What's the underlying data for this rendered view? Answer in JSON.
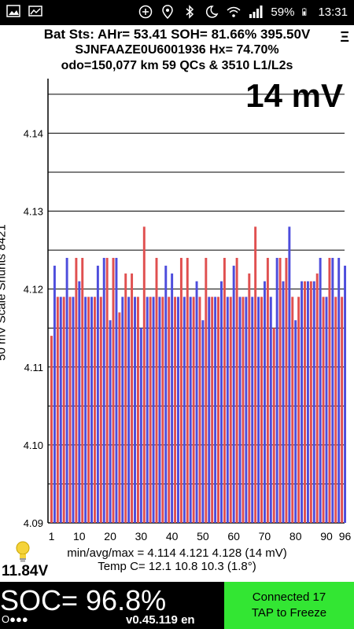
{
  "status_bar": {
    "battery": "59%",
    "time": "13:31",
    "left_icons": [
      "photo-icon",
      "image-icon"
    ],
    "right_icons": [
      "plus-circle-icon",
      "location-icon",
      "bluetooth-icon",
      "moon-alarm-icon",
      "wifi-icon",
      "signal-icon",
      "battery-icon"
    ]
  },
  "header": {
    "line1": "Bat Sts: AHr= 53.41 SOH= 81.66% 395.50V",
    "line2": "SJNFAAZE0U6001936   Hx= 74.70%",
    "line3": "odo=150,077 km 59 QCs & 3510 L1/L2s",
    "menu_icon": "more-menu-icon"
  },
  "scale_label": "14 mV",
  "y_axis_label": "50 mV Scale   Shunts 8421",
  "stats": {
    "minavgmax": "min/avg/max = 4.114 4.121 4.128  (14 mV)",
    "temp": "Temp C= 12.1  10.8  10.3  (1.8°)"
  },
  "voltage_12v": "11.84V",
  "soc": "SOC= 96.8%",
  "indicator": "O●●●",
  "version": "v0.45.119 en",
  "connection": {
    "line1": "Connected 17",
    "line2": "TAP to Freeze"
  },
  "colors": {
    "odd_cell": "#4d4ddc",
    "even_cell": "#e05050",
    "connect_bg": "#33e633"
  },
  "chart_data": {
    "type": "bar",
    "ylim": [
      4.09,
      4.147
    ],
    "yticks": [
      "4.09",
      "4.10",
      "4.11",
      "4.12",
      "4.13",
      "4.14"
    ],
    "xticks": [
      "1",
      "10",
      "20",
      "30",
      "40",
      "50",
      "60",
      "70",
      "80",
      "90",
      "96"
    ],
    "grid": true,
    "values": [
      4.114,
      4.123,
      4.119,
      4.119,
      4.119,
      4.124,
      4.119,
      4.119,
      4.124,
      4.121,
      4.124,
      4.119,
      4.119,
      4.119,
      4.119,
      4.123,
      4.119,
      4.124,
      4.124,
      4.116,
      4.124,
      4.124,
      4.117,
      4.119,
      4.122,
      4.119,
      4.122,
      4.119,
      4.119,
      4.115,
      4.128,
      4.119,
      4.119,
      4.119,
      4.124,
      4.119,
      4.119,
      4.123,
      4.119,
      4.122,
      4.119,
      4.119,
      4.124,
      4.119,
      4.124,
      4.119,
      4.119,
      4.121,
      4.119,
      4.116,
      4.124,
      4.119,
      4.119,
      4.119,
      4.119,
      4.121,
      4.124,
      4.119,
      4.119,
      4.123,
      4.124,
      4.119,
      4.119,
      4.119,
      4.122,
      4.119,
      4.128,
      4.119,
      4.119,
      4.121,
      4.124,
      4.119,
      4.115,
      4.124,
      4.124,
      4.121,
      4.124,
      4.128,
      4.119,
      4.116,
      4.119,
      4.121,
      4.121,
      4.121,
      4.121,
      4.121,
      4.122,
      4.124,
      4.119,
      4.119,
      4.124,
      4.124,
      4.119,
      4.124,
      4.119,
      4.123
    ]
  }
}
